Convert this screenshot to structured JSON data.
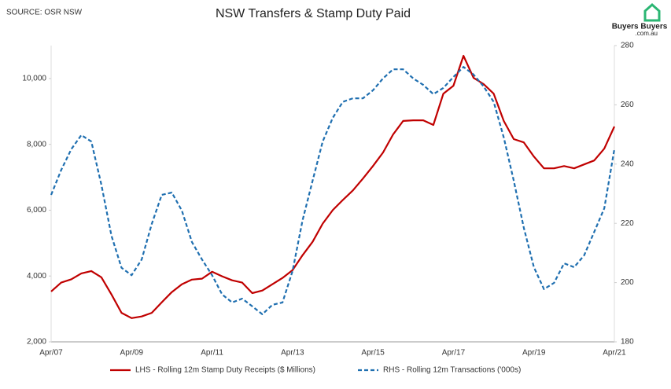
{
  "source": "SOURCE: OSR NSW",
  "logo": {
    "name": "Buyers Buyers",
    "domain": ".com.au"
  },
  "chart_data": {
    "type": "line",
    "title": "NSW Transfers & Stamp Duty Paid",
    "categories": [
      "Apr/07",
      null,
      null,
      null,
      null,
      null,
      null,
      null,
      "Apr/09",
      null,
      null,
      null,
      null,
      null,
      null,
      null,
      "Apr/11",
      null,
      null,
      null,
      null,
      null,
      null,
      null,
      "Apr/13",
      null,
      null,
      null,
      null,
      null,
      null,
      null,
      "Apr/15",
      null,
      null,
      null,
      null,
      null,
      null,
      null,
      "Apr/17",
      null,
      null,
      null,
      null,
      null,
      null,
      null,
      "Apr/19",
      null,
      null,
      null,
      null,
      null,
      null,
      null,
      "Apr/21"
    ],
    "series": [
      {
        "name": "LHS - Rolling 12m Stamp Duty Receipts ($ Millions)",
        "color": "#c00000",
        "dash": false,
        "values": [
          3530,
          3800,
          3900,
          4080,
          4150,
          3960,
          3440,
          2880,
          2720,
          2770,
          2880,
          3200,
          3510,
          3750,
          3890,
          3920,
          4130,
          3990,
          3870,
          3800,
          3480,
          3560,
          3750,
          3940,
          4180,
          4630,
          5040,
          5590,
          6000,
          6310,
          6600,
          6960,
          7340,
          7750,
          8300,
          8710,
          8730,
          8730,
          8590,
          9540,
          9780,
          10690,
          10020,
          9830,
          9540,
          8710,
          8160,
          8060,
          7630,
          7270,
          7270,
          7340,
          7270,
          7390,
          7510,
          7870,
          8540
        ]
      },
      {
        "name": "RHS - Rolling 12m Transactions ('000s)",
        "color": "#1f6fb0",
        "dash": true,
        "axis": "y2",
        "values": [
          229.6,
          238,
          245,
          249.8,
          247.6,
          233,
          215.8,
          205,
          202.5,
          207.8,
          219.8,
          229.6,
          230.4,
          224.3,
          213.7,
          207.8,
          202.5,
          196,
          193.3,
          194.6,
          192,
          189.3,
          192.5,
          193.3,
          203.9,
          221,
          234.4,
          247.6,
          255.6,
          261,
          262.2,
          262.2,
          264.9,
          268.9,
          272,
          272,
          268.9,
          266.7,
          263.6,
          265.7,
          269.4,
          272.8,
          270.2,
          266.2,
          261,
          249,
          234.4,
          218.5,
          205.2,
          197.8,
          199.9,
          206.5,
          205.2,
          209.2,
          217.1,
          225.1,
          245
        ]
      }
    ],
    "ylim": [
      2000,
      11000
    ],
    "yticks": [
      {
        "value": 2000,
        "label": "2,000"
      },
      {
        "value": 4000,
        "label": "4,000"
      },
      {
        "value": 6000,
        "label": "6,000"
      },
      {
        "value": 8000,
        "label": "8,000"
      },
      {
        "value": 10000,
        "label": "10,000"
      }
    ],
    "y2lim": [
      180,
      280
    ],
    "y2ticks": [
      180,
      200,
      220,
      240,
      260,
      280
    ],
    "grid": false,
    "legend": "bottom"
  }
}
